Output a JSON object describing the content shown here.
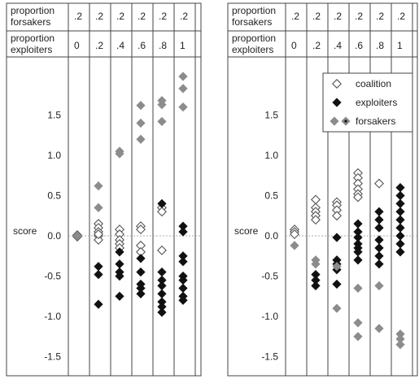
{
  "chart_data": [
    {
      "type": "scatter",
      "header": {
        "row1_label": [
          "proportion",
          "forsakers"
        ],
        "row2_label": [
          "proportion",
          "exploiters"
        ],
        "forsakers": [
          ".2",
          ".2",
          ".2",
          ".2",
          ".2",
          ".2"
        ],
        "exploiters": [
          "0",
          ".2",
          ".4",
          ".6",
          ".8",
          "1"
        ]
      },
      "ylabel": "score",
      "ylim": [
        -1.7,
        2.1
      ],
      "yticks": [
        "1.5",
        "1.0",
        "0.5",
        "0.0",
        "-0.5",
        "-1.0",
        "-1.5"
      ],
      "ytick_values": [
        1.5,
        1.0,
        0.5,
        0.0,
        -0.5,
        -1.0,
        -1.5
      ],
      "zero_line": true,
      "series": [
        {
          "name": "coalition",
          "marker": "open-diamond",
          "color": "#555555",
          "columns": [
            [
              0.0,
              0.01,
              -0.01,
              0.0
            ],
            [
              0.15,
              0.1,
              0.05,
              0.0,
              -0.05,
              0.02
            ],
            [
              0.08,
              0.02,
              -0.05,
              -0.1,
              -0.15
            ],
            [
              0.12,
              0.08,
              -0.12,
              -0.2
            ],
            [
              0.35,
              0.3,
              -0.18
            ],
            []
          ]
        },
        {
          "name": "exploiters",
          "marker": "filled-diamond",
          "color": "#111111",
          "columns": [
            [],
            [
              -0.38,
              -0.48,
              -0.85
            ],
            [
              -0.2,
              -0.35,
              -0.45,
              -0.5,
              -0.75
            ],
            [
              -0.28,
              -0.45,
              -0.6,
              -0.65,
              -0.72
            ],
            [
              0.4,
              -0.45,
              -0.55,
              -0.62,
              -0.72,
              -0.82,
              -0.88,
              -0.95
            ],
            [
              0.12,
              0.05,
              -0.25,
              -0.32,
              -0.5,
              -0.55,
              -0.65,
              -0.75,
              -0.8
            ]
          ]
        },
        {
          "name": "forsakers",
          "marker": "gray-diamond",
          "color": "#8c8c8c",
          "columns": [
            [
              0.0,
              0.0
            ],
            [
              0.62,
              0.35
            ],
            [
              1.05,
              1.02
            ],
            [
              1.62,
              1.4,
              1.2
            ],
            [
              1.68,
              1.63,
              1.42
            ],
            [
              1.98,
              1.83,
              1.6
            ]
          ]
        }
      ]
    },
    {
      "type": "scatter",
      "header": {
        "row1_label": [
          "proportion",
          "forsakers"
        ],
        "row2_label": [
          "proportion",
          "exploiters"
        ],
        "forsakers": [
          ".2",
          ".2",
          ".2",
          ".2",
          ".2",
          ".2"
        ],
        "exploiters": [
          "0",
          ".2",
          ".4",
          ".6",
          ".8",
          "1"
        ]
      },
      "ylabel": "score",
      "ylim": [
        -1.7,
        2.1
      ],
      "yticks": [
        "1.5",
        "1.0",
        "0.5",
        "0.0",
        "-0.5",
        "-1.0",
        "-1.5"
      ],
      "ytick_values": [
        1.5,
        1.0,
        0.5,
        0.0,
        -0.5,
        -1.0,
        -1.5
      ],
      "zero_line": true,
      "legend": {
        "placement": "top-right",
        "entries": [
          "coalition",
          "exploiters",
          "forsakers"
        ]
      },
      "series": [
        {
          "name": "coalition",
          "marker": "open-diamond",
          "color": "#555555",
          "columns": [
            [
              0.08,
              0.05,
              0.02
            ],
            [
              0.45,
              0.35,
              0.3,
              0.25,
              0.2
            ],
            [
              0.42,
              0.38,
              0.32,
              0.25
            ],
            [
              0.78,
              0.72,
              0.65,
              0.58,
              0.52,
              0.48
            ],
            [
              0.65
            ],
            []
          ]
        },
        {
          "name": "exploiters",
          "marker": "filled-diamond",
          "color": "#111111",
          "columns": [
            [],
            [
              -0.48,
              -0.55,
              -0.62
            ],
            [
              -0.02,
              -0.3,
              -0.35,
              -0.42,
              -0.6
            ],
            [
              0.15,
              0.05,
              -0.02,
              -0.1,
              -0.15,
              -0.2,
              -0.3
            ],
            [
              0.3,
              0.2,
              0.1,
              -0.05,
              -0.15,
              -0.25,
              -0.35
            ],
            [
              0.6,
              0.5,
              0.4,
              0.3,
              0.2,
              0.1,
              0.0,
              -0.1,
              -0.2
            ]
          ]
        },
        {
          "name": "forsakers",
          "marker": "gray-diamond",
          "color": "#8c8c8c",
          "columns": [
            [
              -0.12
            ],
            [
              -0.3,
              -0.35
            ],
            [
              -0.38,
              -0.9
            ],
            [
              -0.65,
              -1.08,
              -1.25
            ],
            [
              -0.62,
              -1.15
            ],
            [
              -1.22,
              -1.28,
              -1.35
            ]
          ]
        }
      ]
    }
  ]
}
